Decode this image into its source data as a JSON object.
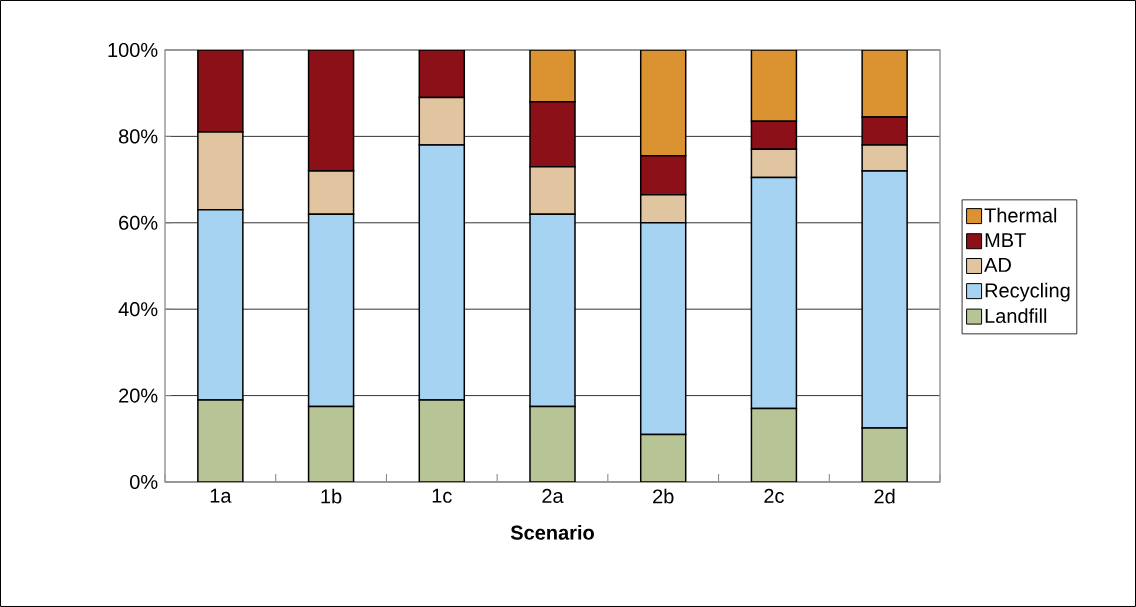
{
  "chart_data": {
    "type": "bar",
    "stacked": true,
    "xlabel": "Scenario",
    "categories": [
      "1a",
      "1b",
      "1c",
      "2a",
      "2b",
      "2c",
      "2d"
    ],
    "series": [
      {
        "name": "Landfill",
        "color": "#b6c496",
        "values": [
          19,
          17.5,
          19,
          17.5,
          11,
          17,
          12.5
        ]
      },
      {
        "name": "Recycling",
        "color": "#a6d3f2",
        "values": [
          44,
          44.5,
          59,
          44.5,
          49,
          53.5,
          59.5
        ]
      },
      {
        "name": "AD",
        "color": "#e1c5a1",
        "values": [
          18,
          10,
          11,
          11,
          6.5,
          6.5,
          6
        ]
      },
      {
        "name": "MBT",
        "color": "#8c1018",
        "values": [
          19,
          28,
          11,
          15,
          9,
          6.5,
          6.5
        ]
      },
      {
        "name": "Thermal",
        "color": "#db9231",
        "values": [
          0,
          0,
          0,
          12,
          24.5,
          16.5,
          15.5
        ]
      }
    ],
    "ylim": [
      0,
      100
    ],
    "yticks": [
      {
        "value": 0,
        "label": "0%"
      },
      {
        "value": 20,
        "label": "20%"
      },
      {
        "value": 40,
        "label": "40%"
      },
      {
        "value": 60,
        "label": "60%"
      },
      {
        "value": 80,
        "label": "80%"
      },
      {
        "value": 100,
        "label": "100%"
      }
    ],
    "grid": "y",
    "legend": "right"
  }
}
